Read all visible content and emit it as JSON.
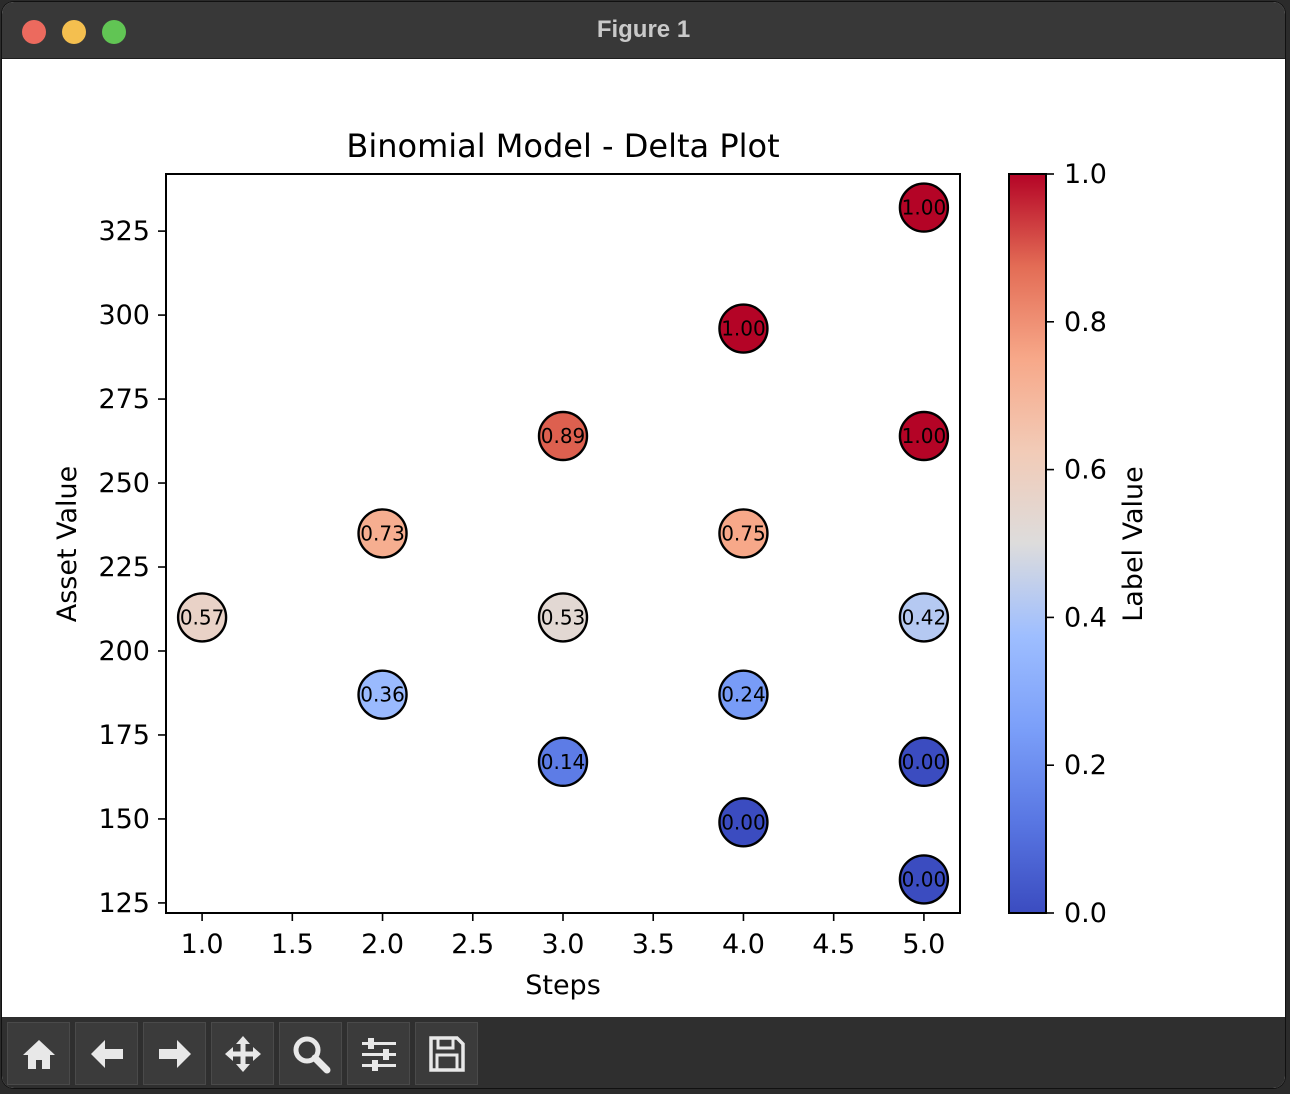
{
  "window": {
    "title": "Figure 1"
  },
  "toolbar": {
    "buttons": [
      {
        "name": "home-button",
        "icon": "home-icon"
      },
      {
        "name": "back-button",
        "icon": "arrow-left-icon"
      },
      {
        "name": "forward-button",
        "icon": "arrow-right-icon"
      },
      {
        "name": "pan-button",
        "icon": "move-icon"
      },
      {
        "name": "zoom-button",
        "icon": "magnifier-icon"
      },
      {
        "name": "configure-subplots-button",
        "icon": "sliders-icon"
      },
      {
        "name": "save-button",
        "icon": "floppy-disk-icon"
      }
    ]
  },
  "chart_data": {
    "type": "scatter",
    "title": "Binomial Model - Delta Plot",
    "xlabel": "Steps",
    "ylabel": "Asset Value",
    "xlim": [
      0.8,
      5.2
    ],
    "ylim": [
      122,
      342
    ],
    "xticks": [
      "1.0",
      "1.5",
      "2.0",
      "2.5",
      "3.0",
      "3.5",
      "4.0",
      "4.5",
      "5.0"
    ],
    "yticks": [
      "125",
      "150",
      "175",
      "200",
      "225",
      "250",
      "275",
      "300",
      "325"
    ],
    "colorbar": {
      "label": "Label Value",
      "ticks": [
        "0.0",
        "0.2",
        "0.4",
        "0.6",
        "0.8",
        "1.0"
      ],
      "colormap": "coolwarm",
      "range": [
        0,
        1
      ]
    },
    "grid": false,
    "points": [
      {
        "x": 1,
        "y": 210,
        "value": 0.57,
        "label": "0.57"
      },
      {
        "x": 2,
        "y": 187,
        "value": 0.36,
        "label": "0.36"
      },
      {
        "x": 2,
        "y": 235,
        "value": 0.73,
        "label": "0.73"
      },
      {
        "x": 3,
        "y": 167,
        "value": 0.14,
        "label": "0.14"
      },
      {
        "x": 3,
        "y": 210,
        "value": 0.53,
        "label": "0.53"
      },
      {
        "x": 3,
        "y": 264,
        "value": 0.89,
        "label": "0.89"
      },
      {
        "x": 4,
        "y": 149,
        "value": 0.0,
        "label": "0.00"
      },
      {
        "x": 4,
        "y": 187,
        "value": 0.24,
        "label": "0.24"
      },
      {
        "x": 4,
        "y": 235,
        "value": 0.75,
        "label": "0.75"
      },
      {
        "x": 4,
        "y": 296,
        "value": 1.0,
        "label": "1.00"
      },
      {
        "x": 5,
        "y": 132,
        "value": 0.0,
        "label": "0.00"
      },
      {
        "x": 5,
        "y": 167,
        "value": 0.0,
        "label": "0.00"
      },
      {
        "x": 5,
        "y": 210,
        "value": 0.42,
        "label": "0.42"
      },
      {
        "x": 5,
        "y": 264,
        "value": 1.0,
        "label": "1.00"
      },
      {
        "x": 5,
        "y": 332,
        "value": 1.0,
        "label": "1.00"
      }
    ]
  }
}
